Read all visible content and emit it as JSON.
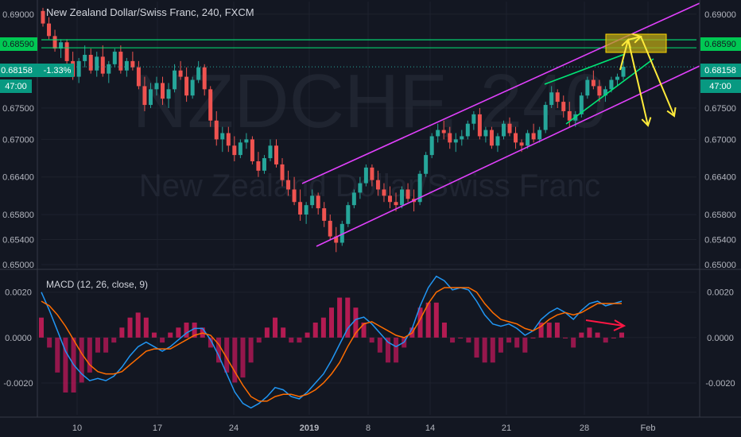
{
  "chart_data": [
    {
      "type": "candlestick",
      "title": "New Zealand Dollar/Swiss Franc, 240, FXCM",
      "watermark": {
        "symbol": "NZDCHF, 240",
        "name": "New Zealand Dollar/Swiss Franc"
      },
      "x_ticks": [
        "10",
        "17",
        "24",
        "2019",
        "8",
        "14",
        "21",
        "28",
        "Feb"
      ],
      "y_ticks": [
        "0.69000",
        "0.68590",
        "0.68158",
        "0.67500",
        "0.67000",
        "0.66400",
        "0.65800",
        "0.65400",
        "0.65000"
      ],
      "ylim": [
        0.6495,
        0.692
      ],
      "labels": {
        "left_resistance": "0.68590",
        "left_price": "0.68158",
        "left_change": "-1.33%",
        "left_countdown": "47:00",
        "right_resistance": "0.68590",
        "right_price": "0.68158",
        "right_countdown": "47:00"
      },
      "resistance_level": 0.6859,
      "last_price": 0.68158,
      "candles": [
        [
          0.6905,
          0.691,
          0.688,
          0.6885
        ],
        [
          0.6885,
          0.6895,
          0.686,
          0.6865
        ],
        [
          0.6865,
          0.6875,
          0.684,
          0.6845
        ],
        [
          0.6845,
          0.686,
          0.683,
          0.6855
        ],
        [
          0.6855,
          0.686,
          0.682,
          0.6825
        ],
        [
          0.6825,
          0.684,
          0.6795,
          0.68
        ],
        [
          0.68,
          0.683,
          0.679,
          0.6825
        ],
        [
          0.6825,
          0.685,
          0.6815,
          0.6835
        ],
        [
          0.6835,
          0.6845,
          0.6805,
          0.681
        ],
        [
          0.681,
          0.684,
          0.68,
          0.6832
        ],
        [
          0.6832,
          0.685,
          0.68,
          0.6805
        ],
        [
          0.6805,
          0.6825,
          0.679,
          0.682
        ],
        [
          0.682,
          0.6845,
          0.6815,
          0.684
        ],
        [
          0.684,
          0.685,
          0.6805,
          0.681
        ],
        [
          0.681,
          0.683,
          0.68,
          0.6825
        ],
        [
          0.6825,
          0.684,
          0.681,
          0.6815
        ],
        [
          0.6815,
          0.6825,
          0.678,
          0.6785
        ],
        [
          0.6785,
          0.68,
          0.6745,
          0.6755
        ],
        [
          0.6755,
          0.679,
          0.675,
          0.678
        ],
        [
          0.678,
          0.68,
          0.677,
          0.679
        ],
        [
          0.679,
          0.68,
          0.6755,
          0.6765
        ],
        [
          0.6765,
          0.679,
          0.675,
          0.678
        ],
        [
          0.678,
          0.682,
          0.6775,
          0.681
        ],
        [
          0.681,
          0.6825,
          0.6795,
          0.68
        ],
        [
          0.68,
          0.6815,
          0.676,
          0.677
        ],
        [
          0.677,
          0.68,
          0.6765,
          0.6795
        ],
        [
          0.6795,
          0.6825,
          0.679,
          0.6815
        ],
        [
          0.6815,
          0.682,
          0.677,
          0.678
        ],
        [
          0.678,
          0.6785,
          0.672,
          0.673
        ],
        [
          0.673,
          0.6745,
          0.669,
          0.67
        ],
        [
          0.67,
          0.672,
          0.668,
          0.671
        ],
        [
          0.671,
          0.672,
          0.668,
          0.669
        ],
        [
          0.669,
          0.6705,
          0.6665,
          0.6675
        ],
        [
          0.6675,
          0.67,
          0.667,
          0.6695
        ],
        [
          0.6695,
          0.671,
          0.6685,
          0.67
        ],
        [
          0.67,
          0.6705,
          0.666,
          0.6665
        ],
        [
          0.6665,
          0.668,
          0.664,
          0.665
        ],
        [
          0.665,
          0.6675,
          0.6645,
          0.667
        ],
        [
          0.667,
          0.67,
          0.6665,
          0.669
        ],
        [
          0.669,
          0.67,
          0.6655,
          0.666
        ],
        [
          0.666,
          0.667,
          0.6625,
          0.6635
        ],
        [
          0.6635,
          0.665,
          0.661,
          0.662
        ],
        [
          0.662,
          0.664,
          0.6595,
          0.66
        ],
        [
          0.66,
          0.662,
          0.657,
          0.658
        ],
        [
          0.658,
          0.66,
          0.6565,
          0.6595
        ],
        [
          0.6595,
          0.662,
          0.659,
          0.661
        ],
        [
          0.661,
          0.6615,
          0.658,
          0.659
        ],
        [
          0.659,
          0.66,
          0.656,
          0.657
        ],
        [
          0.657,
          0.658,
          0.654,
          0.6545
        ],
        [
          0.6545,
          0.656,
          0.652,
          0.6535
        ],
        [
          0.6535,
          0.657,
          0.653,
          0.6565
        ],
        [
          0.6565,
          0.66,
          0.656,
          0.6595
        ],
        [
          0.6595,
          0.662,
          0.659,
          0.6615
        ],
        [
          0.6615,
          0.664,
          0.6605,
          0.663
        ],
        [
          0.663,
          0.666,
          0.6625,
          0.6655
        ],
        [
          0.6655,
          0.666,
          0.6625,
          0.6635
        ],
        [
          0.6635,
          0.665,
          0.661,
          0.662
        ],
        [
          0.662,
          0.663,
          0.66,
          0.661
        ],
        [
          0.661,
          0.6625,
          0.659,
          0.66
        ],
        [
          0.66,
          0.6615,
          0.6585,
          0.6595
        ],
        [
          0.6595,
          0.6625,
          0.659,
          0.662
        ],
        [
          0.662,
          0.663,
          0.66,
          0.6605
        ],
        [
          0.6605,
          0.662,
          0.6585,
          0.66
        ],
        [
          0.66,
          0.665,
          0.6595,
          0.6645
        ],
        [
          0.6645,
          0.668,
          0.664,
          0.6675
        ],
        [
          0.6675,
          0.671,
          0.667,
          0.6705
        ],
        [
          0.6705,
          0.6725,
          0.6695,
          0.6715
        ],
        [
          0.6715,
          0.673,
          0.67,
          0.671
        ],
        [
          0.671,
          0.672,
          0.6685,
          0.6695
        ],
        [
          0.6695,
          0.671,
          0.668,
          0.67
        ],
        [
          0.67,
          0.6715,
          0.669,
          0.6705
        ],
        [
          0.6705,
          0.673,
          0.67,
          0.6725
        ],
        [
          0.6725,
          0.6745,
          0.6715,
          0.674
        ],
        [
          0.674,
          0.675,
          0.67,
          0.6705
        ],
        [
          0.6705,
          0.672,
          0.6695,
          0.6715
        ],
        [
          0.6715,
          0.672,
          0.6685,
          0.669
        ],
        [
          0.669,
          0.671,
          0.668,
          0.6705
        ],
        [
          0.6705,
          0.673,
          0.67,
          0.6725
        ],
        [
          0.6725,
          0.6735,
          0.6705,
          0.671
        ],
        [
          0.671,
          0.672,
          0.6685,
          0.6695
        ],
        [
          0.6695,
          0.67,
          0.668,
          0.669
        ],
        [
          0.669,
          0.6715,
          0.6685,
          0.671
        ],
        [
          0.671,
          0.6725,
          0.6695,
          0.67
        ],
        [
          0.67,
          0.672,
          0.6695,
          0.6715
        ],
        [
          0.6715,
          0.676,
          0.671,
          0.6755
        ],
        [
          0.6755,
          0.6785,
          0.675,
          0.6775
        ],
        [
          0.6775,
          0.678,
          0.675,
          0.676
        ],
        [
          0.676,
          0.677,
          0.6735,
          0.6745
        ],
        [
          0.6745,
          0.676,
          0.672,
          0.673
        ],
        [
          0.673,
          0.6745,
          0.672,
          0.674
        ],
        [
          0.674,
          0.6775,
          0.6735,
          0.677
        ],
        [
          0.677,
          0.68,
          0.6765,
          0.6795
        ],
        [
          0.6795,
          0.681,
          0.678,
          0.6785
        ],
        [
          0.6785,
          0.6795,
          0.676,
          0.677
        ],
        [
          0.677,
          0.6785,
          0.676,
          0.678
        ],
        [
          0.678,
          0.68,
          0.6775,
          0.6795
        ],
        [
          0.6795,
          0.6805,
          0.6785,
          0.68
        ],
        [
          0.68,
          0.6825,
          0.6795,
          0.6816
        ]
      ]
    },
    {
      "type": "line",
      "title": "MACD (12, 26, close, 9)",
      "y_ticks": [
        "0.0020",
        "0.0000",
        "-0.0020"
      ],
      "ylim": [
        -0.0034,
        0.0029
      ],
      "series": [
        {
          "values": [
            0.002,
            0.0012,
            0.0003,
            -0.0006,
            -0.0012,
            -0.0016,
            -0.0019,
            -0.0018,
            -0.0019,
            -0.0017,
            -0.0013,
            -0.0008,
            -0.0004,
            -0.0002,
            -0.0004,
            -0.0006,
            -0.0004,
            -0.0001,
            0.0002,
            0.0004,
            0.0004,
            -0.0001,
            -0.0008,
            -0.0016,
            -0.0024,
            -0.0029,
            -0.0031,
            -0.0029,
            -0.0026,
            -0.0022,
            -0.0023,
            -0.0026,
            -0.0027,
            -0.0024,
            -0.002,
            -0.0016,
            -0.001,
            -0.0003,
            0.0004,
            0.0008,
            0.0009,
            0.0006,
            0.0002,
            -0.0002,
            -0.0004,
            -0.0002,
            0.0004,
            0.0014,
            0.0022,
            0.0027,
            0.0025,
            0.0021,
            0.0022,
            0.0021,
            0.0016,
            0.001,
            0.0006,
            0.0005,
            0.0006,
            0.0004,
            0.0001,
            0.0003,
            0.0008,
            0.0011,
            0.0013,
            0.0011,
            0.0008,
            0.0012,
            0.0015,
            0.0016,
            0.0014,
            0.0015,
            0.0016
          ]
        },
        {
          "values": [
            0.0016,
            0.0014,
            0.001,
            0.0005,
            -0.0001,
            -0.0007,
            -0.0012,
            -0.0015,
            -0.0016,
            -0.0016,
            -0.0015,
            -0.0012,
            -0.0009,
            -0.0006,
            -0.0005,
            -0.0005,
            -0.0005,
            -0.0003,
            -0.0001,
            0.0001,
            0.0002,
            0.0001,
            -0.0003,
            -0.0009,
            -0.0015,
            -0.0021,
            -0.0026,
            -0.0028,
            -0.0028,
            -0.0026,
            -0.0025,
            -0.0025,
            -0.0026,
            -0.0025,
            -0.0023,
            -0.002,
            -0.0016,
            -0.0011,
            -0.0004,
            0.0002,
            0.0006,
            0.0007,
            0.0005,
            0.0003,
            0.0001,
            0.0,
            0.0002,
            0.0008,
            0.0015,
            0.002,
            0.0022,
            0.0022,
            0.0022,
            0.0022,
            0.002,
            0.0015,
            0.0011,
            0.0008,
            0.0007,
            0.0006,
            0.0004,
            0.0003,
            0.0005,
            0.0008,
            0.001,
            0.0011,
            0.001,
            0.0011,
            0.0013,
            0.0015,
            0.0015,
            0.0015,
            0.0015
          ]
        }
      ]
    }
  ]
}
